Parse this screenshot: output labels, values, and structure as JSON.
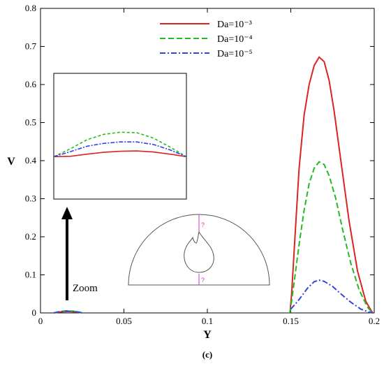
{
  "chart_data": {
    "type": "line",
    "xlabel": "Y",
    "ylabel": "V",
    "xlim": [
      0,
      0.2
    ],
    "ylim": [
      0,
      0.8
    ],
    "xticks": [
      "0",
      "0.05",
      "0.1",
      "0.15",
      "0.2"
    ],
    "yticks": [
      "0",
      "0.1",
      "0.2",
      "0.3",
      "0.4",
      "0.5",
      "0.6",
      "0.7",
      "0.8"
    ],
    "legend_position": "top-center",
    "series": [
      {
        "name": "Da=10⁻³",
        "color": "#dd2222",
        "style": "solid",
        "points": [
          [
            0.1495,
            0
          ],
          [
            0.1505,
            0.05
          ],
          [
            0.1525,
            0.2
          ],
          [
            0.155,
            0.38
          ],
          [
            0.158,
            0.52
          ],
          [
            0.161,
            0.6
          ],
          [
            0.164,
            0.65
          ],
          [
            0.167,
            0.672
          ],
          [
            0.17,
            0.66
          ],
          [
            0.173,
            0.61
          ],
          [
            0.176,
            0.53
          ],
          [
            0.18,
            0.4
          ],
          [
            0.185,
            0.24
          ],
          [
            0.19,
            0.11
          ],
          [
            0.195,
            0.03
          ],
          [
            0.199,
            0
          ]
        ]
      },
      {
        "name": "Da=10⁻⁴",
        "color": "#22bb22",
        "style": "dashed",
        "points": [
          [
            0.1495,
            0
          ],
          [
            0.152,
            0.08
          ],
          [
            0.155,
            0.18
          ],
          [
            0.158,
            0.27
          ],
          [
            0.161,
            0.34
          ],
          [
            0.164,
            0.38
          ],
          [
            0.167,
            0.397
          ],
          [
            0.17,
            0.39
          ],
          [
            0.173,
            0.36
          ],
          [
            0.177,
            0.3
          ],
          [
            0.181,
            0.22
          ],
          [
            0.186,
            0.13
          ],
          [
            0.191,
            0.06
          ],
          [
            0.196,
            0.015
          ],
          [
            0.199,
            0
          ]
        ]
      },
      {
        "name": "Da=10⁻⁵",
        "color": "#3344dd",
        "style": "dashdot",
        "points": [
          [
            0.15,
            0.01
          ],
          [
            0.155,
            0.035
          ],
          [
            0.16,
            0.065
          ],
          [
            0.164,
            0.082
          ],
          [
            0.167,
            0.086
          ],
          [
            0.17,
            0.083
          ],
          [
            0.175,
            0.07
          ],
          [
            0.18,
            0.05
          ],
          [
            0.186,
            0.028
          ],
          [
            0.192,
            0.01
          ],
          [
            0.197,
            0.002
          ],
          [
            0.199,
            0
          ]
        ]
      }
    ],
    "inset_series": [
      {
        "color": "#dd2222",
        "style": "solid",
        "values": [
          0.418,
          0.419,
          0.425,
          0.43,
          0.433,
          0.434,
          0.431,
          0.425,
          0.418
        ]
      },
      {
        "color": "#22bb22",
        "style": "dashed",
        "values": [
          0.418,
          0.44,
          0.465,
          0.48,
          0.486,
          0.485,
          0.47,
          0.445,
          0.418
        ]
      },
      {
        "color": "#3344dd",
        "style": "dashdot",
        "values": [
          0.418,
          0.432,
          0.447,
          0.455,
          0.459,
          0.459,
          0.452,
          0.437,
          0.418
        ]
      }
    ],
    "annotations": {
      "zoom": "Zoom",
      "marker_top": "?",
      "marker_bottom": "?"
    },
    "caption": "(c)"
  }
}
